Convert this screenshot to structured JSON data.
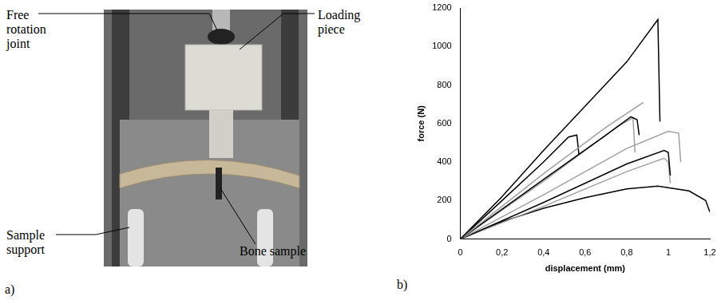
{
  "panel_a": {
    "label": "a)",
    "annotations": [
      "Free rotation joint",
      "Loading piece",
      "Sample support",
      "Bone sample"
    ]
  },
  "chart_data": {
    "type": "line",
    "panel_label": "b)",
    "x_label": "displacement (mm)",
    "y_label": "force (N)",
    "xlim": [
      0,
      1.2
    ],
    "xticks": [
      0,
      {
        "value": 0.2,
        "label": "0,2"
      },
      {
        "value": 0.4,
        "label": "0,4"
      },
      {
        "value": 0.6,
        "label": "0,6"
      },
      {
        "value": 0.8,
        "label": "0,8"
      },
      1,
      {
        "value": 1.2,
        "label": "1,2"
      }
    ],
    "ylim": [
      0,
      1200
    ],
    "yticks": [
      0,
      200,
      400,
      600,
      800,
      1000,
      1200
    ],
    "grid": false,
    "series": [
      {
        "color": "#000000",
        "x": [
          0,
          0.2,
          0.4,
          0.6,
          0.8,
          0.95,
          0.96
        ],
        "values": [
          0,
          220,
          460,
          690,
          920,
          1140,
          610
        ]
      },
      {
        "color": "#a0a0a0",
        "x": [
          0,
          0.4,
          0.7,
          0.88
        ],
        "values": [
          0,
          340,
          580,
          710
        ]
      },
      {
        "color": "#000000",
        "x": [
          0,
          0.2,
          0.4,
          0.52,
          0.56,
          0.57
        ],
        "values": [
          0,
          200,
          400,
          530,
          540,
          440
        ]
      },
      {
        "color": "#000000",
        "x": [
          0,
          0.4,
          0.7,
          0.82,
          0.85,
          0.86
        ],
        "values": [
          0,
          310,
          540,
          635,
          620,
          540
        ]
      },
      {
        "color": "#a0a0a0",
        "x": [
          0,
          0.4,
          0.75,
          0.83,
          0.84
        ],
        "values": [
          0,
          300,
          580,
          630,
          450
        ]
      },
      {
        "color": "#a0a0a0",
        "x": [
          0,
          0.4,
          0.8,
          1.0,
          1.05,
          1.06
        ],
        "values": [
          0,
          230,
          470,
          560,
          550,
          400
        ]
      },
      {
        "color": "#000000",
        "x": [
          0,
          0.4,
          0.8,
          0.98,
          1.0,
          1.01
        ],
        "values": [
          0,
          190,
          390,
          460,
          450,
          330
        ]
      },
      {
        "color": "#a0a0a0",
        "x": [
          0,
          0.4,
          0.8,
          0.98,
          1.0,
          1.01
        ],
        "values": [
          0,
          170,
          350,
          420,
          400,
          290
        ]
      },
      {
        "color": "#000000",
        "x": [
          0,
          0.2,
          0.4,
          0.6,
          0.8,
          0.95,
          1.1,
          1.18,
          1.2
        ],
        "values": [
          0,
          90,
          160,
          215,
          260,
          275,
          250,
          200,
          140
        ]
      }
    ]
  }
}
